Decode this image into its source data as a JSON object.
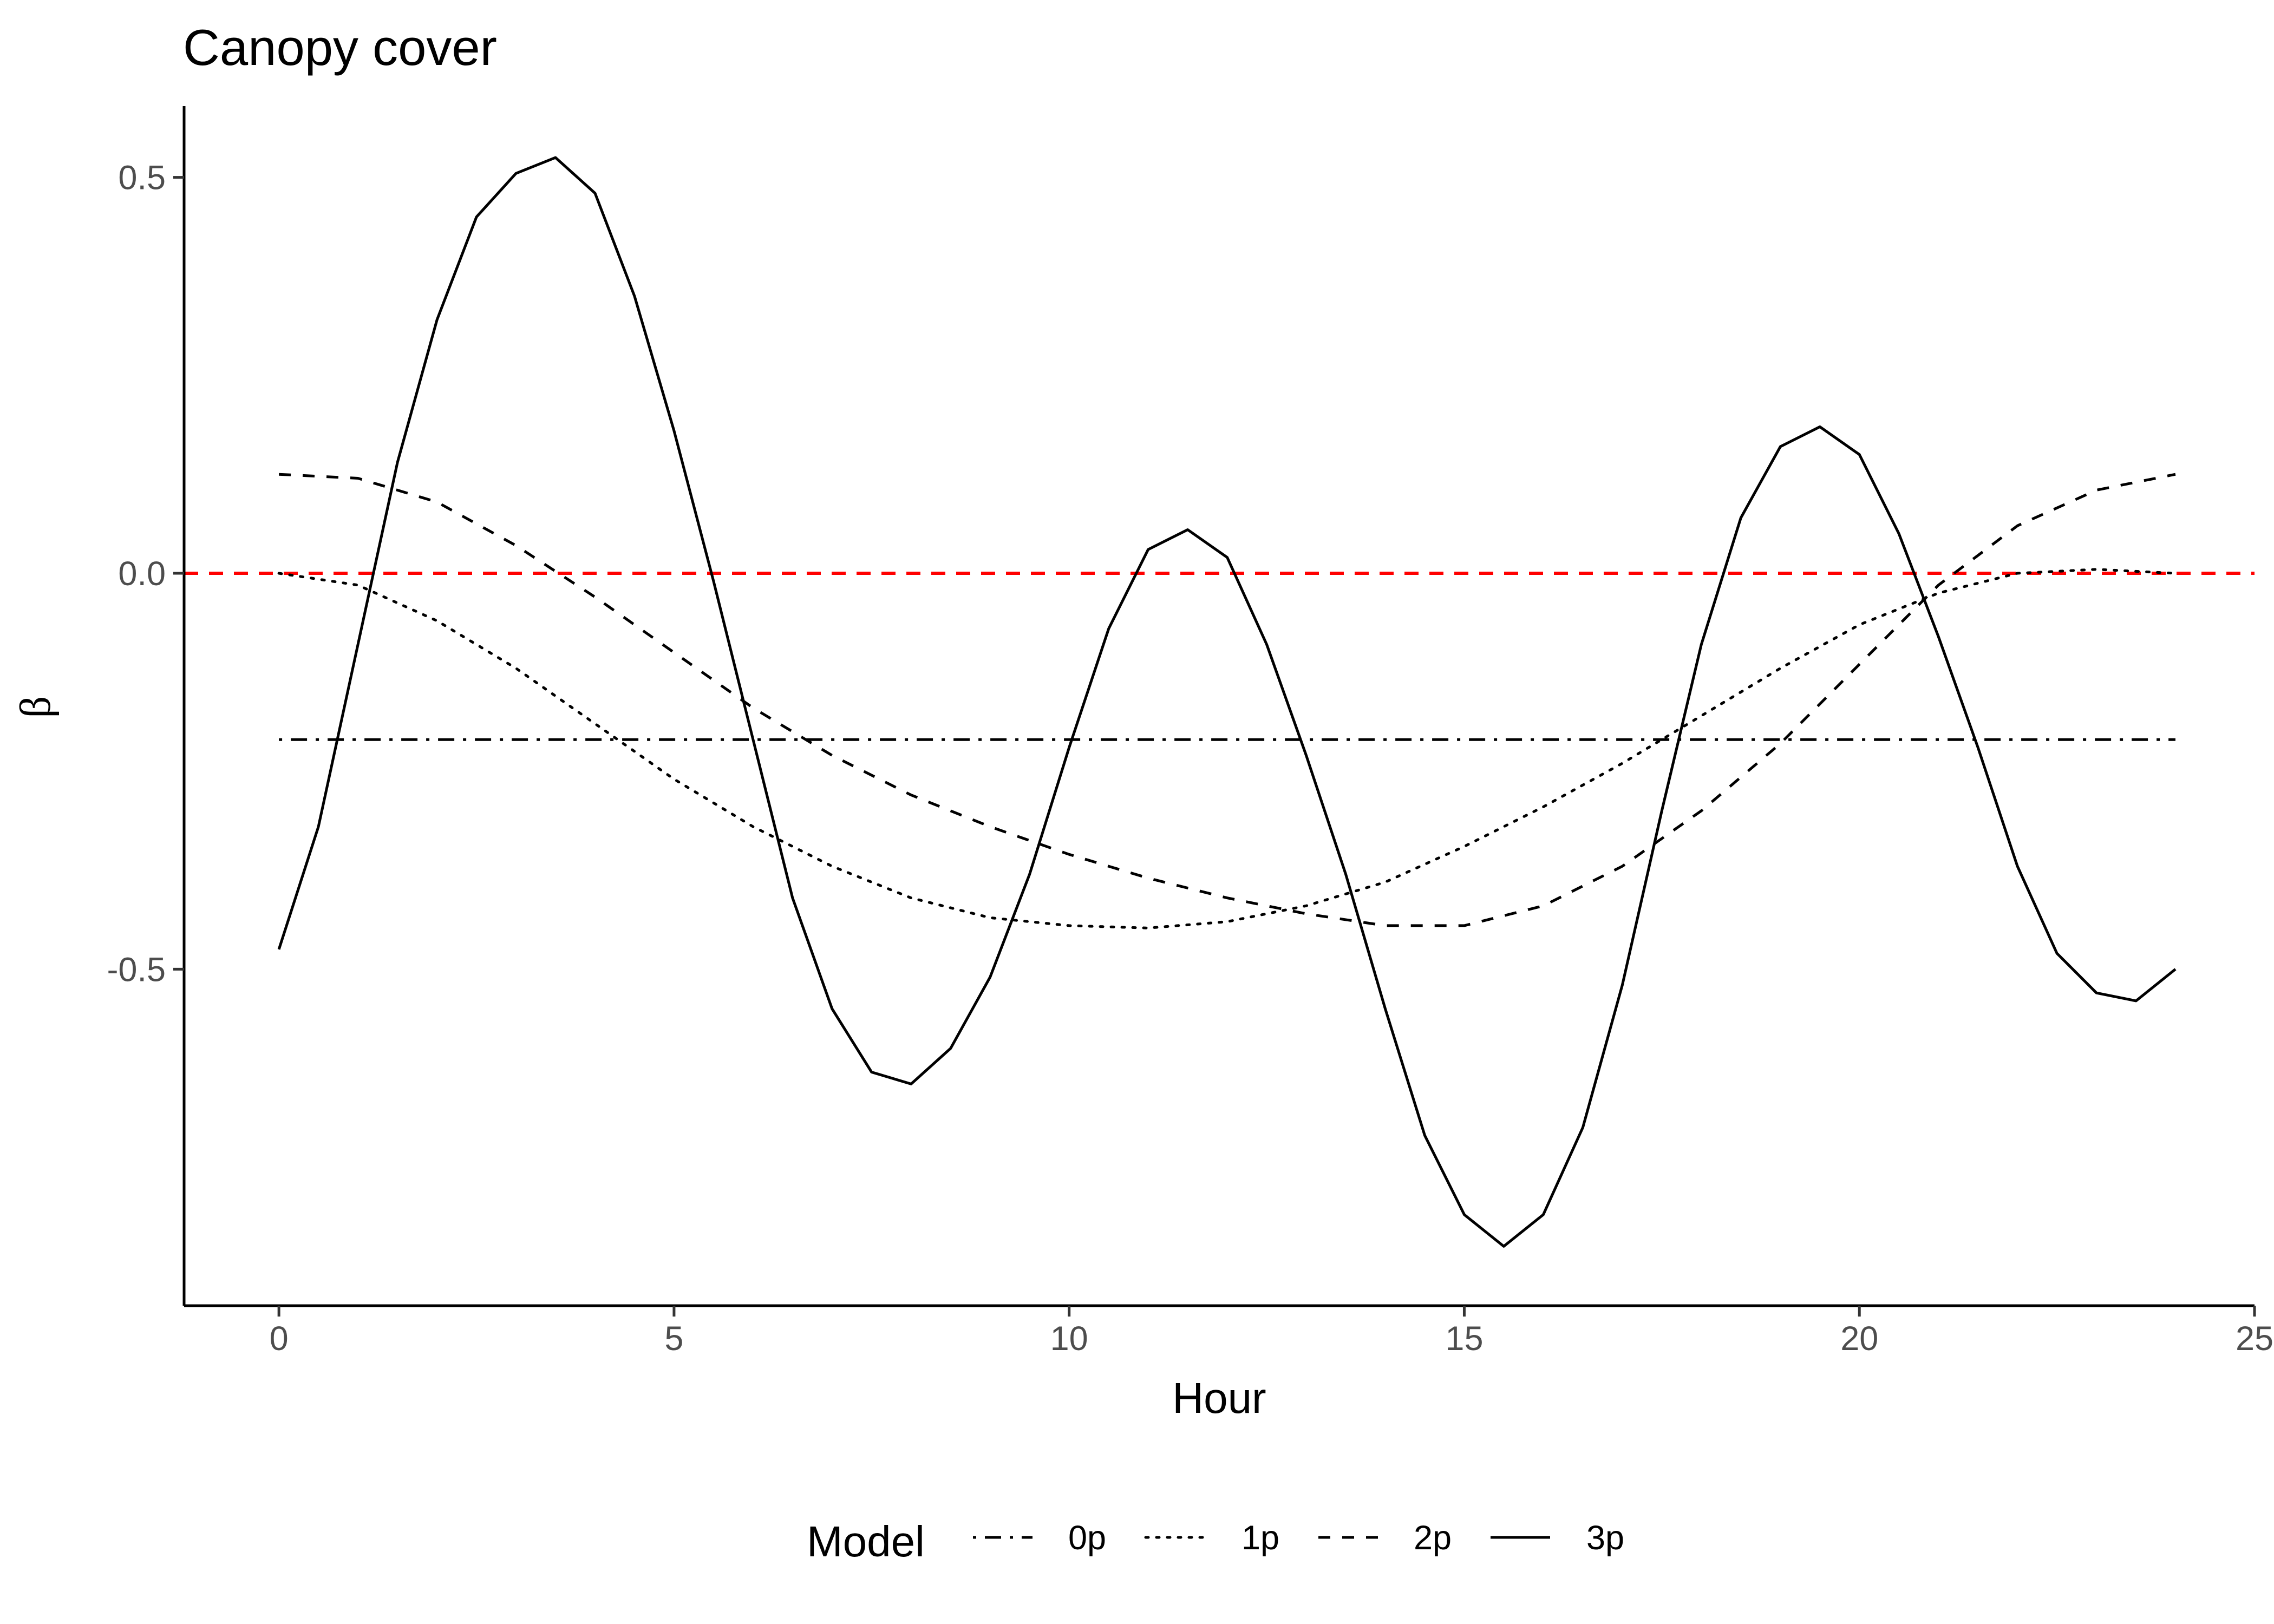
{
  "chart_data": {
    "type": "line",
    "title": "Canopy cover",
    "xlabel": "Hour",
    "ylabel": "β",
    "xlim": [
      -1.2,
      25
    ],
    "ylim": [
      -0.925,
      0.59
    ],
    "xticks": [
      0,
      5,
      10,
      15,
      20,
      25
    ],
    "xtick_labels": [
      "0",
      "5",
      "10",
      "15",
      "20",
      "25"
    ],
    "yticks": [
      -0.5,
      0.0,
      0.5
    ],
    "ytick_labels": [
      "-0.5",
      "0.0",
      "0.5"
    ],
    "grid": false,
    "legend": {
      "title": "Model",
      "position": "bottom"
    },
    "reference_line": {
      "y": 0,
      "color": "#ff0000",
      "style": "dashed"
    },
    "series": [
      {
        "name": "0p",
        "style": "dotdash",
        "color": "#000000",
        "x": [
          0,
          24
        ],
        "y": [
          -0.21,
          -0.21
        ]
      },
      {
        "name": "1p",
        "style": "dotted",
        "color": "#000000",
        "x": [
          0,
          1,
          2,
          3,
          4,
          5,
          6,
          7,
          8,
          9,
          10,
          11,
          12,
          13,
          14,
          15,
          16,
          17,
          18,
          19,
          20,
          21,
          22,
          23,
          24
        ],
        "y": [
          0.0,
          -0.015,
          -0.06,
          -0.12,
          -0.19,
          -0.26,
          -0.32,
          -0.37,
          -0.41,
          -0.435,
          -0.445,
          -0.448,
          -0.44,
          -0.42,
          -0.39,
          -0.345,
          -0.295,
          -0.24,
          -0.18,
          -0.12,
          -0.065,
          -0.025,
          0.0,
          0.005,
          0.0
        ]
      },
      {
        "name": "2p",
        "style": "dashed",
        "color": "#000000",
        "x": [
          0,
          1,
          2,
          3,
          4,
          5,
          6,
          7,
          8,
          9,
          10,
          11,
          12,
          13,
          14,
          15,
          16,
          17,
          18,
          19,
          20,
          21,
          22,
          23,
          24
        ],
        "y": [
          0.125,
          0.12,
          0.09,
          0.035,
          -0.03,
          -0.1,
          -0.17,
          -0.23,
          -0.28,
          -0.32,
          -0.355,
          -0.385,
          -0.41,
          -0.43,
          -0.445,
          -0.445,
          -0.42,
          -0.37,
          -0.3,
          -0.215,
          -0.115,
          -0.015,
          0.06,
          0.105,
          0.125
        ]
      },
      {
        "name": "3p",
        "style": "solid",
        "color": "#000000",
        "x": [
          0,
          0.5,
          1,
          1.5,
          2,
          2.5,
          3,
          3.5,
          4,
          4.5,
          5,
          5.5,
          6,
          6.5,
          7,
          7.5,
          8,
          8.5,
          9,
          9.5,
          10,
          10.5,
          11,
          11.5,
          12,
          12.5,
          13,
          13.5,
          14,
          14.5,
          15,
          15.5,
          16,
          16.5,
          17,
          17.5,
          18,
          18.5,
          19,
          19.5,
          20,
          20.5,
          21,
          21.5,
          22,
          22.5,
          23,
          23.5,
          24
        ],
        "y": [
          -0.475,
          -0.32,
          -0.09,
          0.14,
          0.32,
          0.45,
          0.505,
          0.525,
          0.48,
          0.35,
          0.18,
          -0.01,
          -0.21,
          -0.41,
          -0.55,
          -0.63,
          -0.645,
          -0.6,
          -0.51,
          -0.38,
          -0.22,
          -0.07,
          0.03,
          0.055,
          0.02,
          -0.09,
          -0.23,
          -0.38,
          -0.55,
          -0.71,
          -0.81,
          -0.85,
          -0.81,
          -0.7,
          -0.52,
          -0.3,
          -0.09,
          0.07,
          0.16,
          0.185,
          0.15,
          0.05,
          -0.08,
          -0.22,
          -0.37,
          -0.48,
          -0.53,
          -0.54,
          -0.5
        ]
      }
    ]
  }
}
